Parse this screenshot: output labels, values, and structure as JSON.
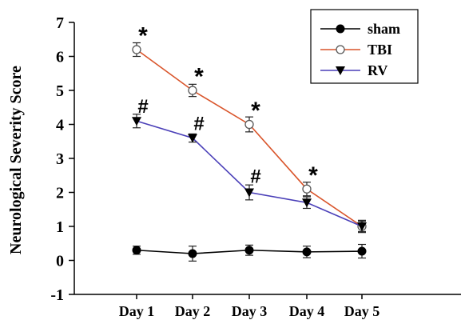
{
  "chart_data": {
    "type": "line",
    "title": "",
    "xlabel": "",
    "ylabel": "Neurological Severity Score",
    "ylim": [
      -1,
      7
    ],
    "yticks": [
      "-1",
      "0",
      "1",
      "2",
      "3",
      "4",
      "5",
      "6",
      "7"
    ],
    "categories": [
      "Day 1",
      "Day 2",
      "Day 3",
      "Day 4",
      "Day 5"
    ],
    "grid": false,
    "legend_position": "top-right",
    "series": [
      {
        "name": "sham",
        "color": "#000000",
        "marker": "filled-circle",
        "values": [
          0.3,
          0.2,
          0.3,
          0.25,
          0.27
        ],
        "errors": [
          0.12,
          0.22,
          0.15,
          0.17,
          0.2
        ]
      },
      {
        "name": "TBI",
        "color": "#d9542a",
        "marker": "open-circle",
        "values": [
          6.2,
          5.0,
          4.0,
          2.1,
          1.0
        ],
        "errors": [
          0.2,
          0.18,
          0.22,
          0.2,
          0.18
        ]
      },
      {
        "name": "RV",
        "color": "#4a3fb8",
        "marker": "filled-triangle-down",
        "values": [
          4.1,
          3.6,
          2.0,
          1.7,
          1.0
        ],
        "errors": [
          0.2,
          0.12,
          0.22,
          0.17,
          0.15
        ]
      }
    ],
    "annotations": [
      {
        "text": "*",
        "category": "Day 1",
        "y": 6.75
      },
      {
        "text": "*",
        "category": "Day 2",
        "y": 5.55
      },
      {
        "text": "*",
        "category": "Day 3",
        "y": 4.55
      },
      {
        "text": "*",
        "category": "Day 4",
        "y": 2.65
      },
      {
        "text": "#",
        "category": "Day 1",
        "y": 4.55
      },
      {
        "text": "#",
        "category": "Day 2",
        "y": 4.05
      },
      {
        "text": "#",
        "category": "Day 3",
        "y": 2.5
      }
    ]
  }
}
